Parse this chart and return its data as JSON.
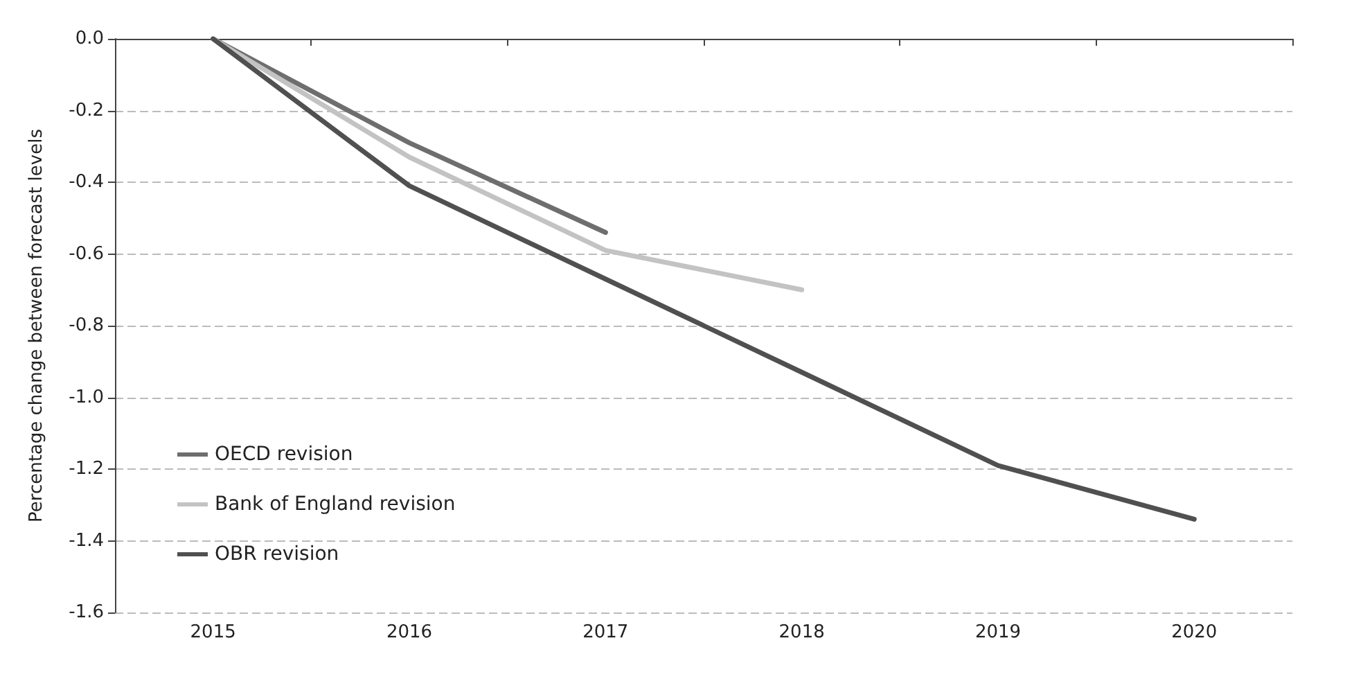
{
  "chart_data": {
    "type": "line",
    "ylabel": "Percentage change between forecast levels",
    "categories": [
      "2015",
      "2016",
      "2017",
      "2018",
      "2019",
      "2020"
    ],
    "series": [
      {
        "name": "OECD revision",
        "color": "#6e6e6e",
        "values": [
          0,
          -0.29,
          -0.54,
          null,
          null,
          null
        ]
      },
      {
        "name": "Bank of England revision",
        "color": "#c3c3c3",
        "values": [
          0,
          -0.33,
          -0.59,
          -0.7,
          null,
          null
        ]
      },
      {
        "name": "OBR revision",
        "color": "#505050",
        "values": [
          0,
          -0.41,
          -0.67,
          -0.93,
          -1.19,
          -1.34
        ]
      }
    ],
    "ylim": [
      -1.6,
      0
    ],
    "yticks": [
      -1.6,
      -1.4,
      -1.2,
      {
        "value": -1,
        "label": "-1.0"
      },
      -0.8,
      -0.6,
      -0.4,
      -0.2,
      {
        "value": 0,
        "label": "0.0"
      }
    ],
    "grid": "y",
    "legend": "bottom left",
    "marker": "none",
    "line_style": "solid"
  }
}
